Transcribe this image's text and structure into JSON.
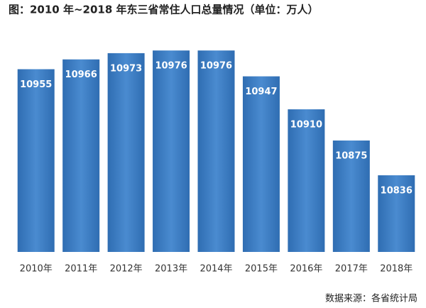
{
  "chart_data": {
    "type": "bar",
    "title": "图：2010 年~2018 年东三省常住人口总量情况（单位：万人）",
    "source": "数据来源：各省统计局",
    "categories": [
      "2010年",
      "2011年",
      "2012年",
      "2013年",
      "2014年",
      "2015年",
      "2016年",
      "2017年",
      "2018年"
    ],
    "values": [
      10955,
      10966,
      10973,
      10976,
      10976,
      10947,
      10910,
      10875,
      10836
    ],
    "color": "#3d7cc2",
    "ylim": [
      10750,
      11000
    ]
  }
}
